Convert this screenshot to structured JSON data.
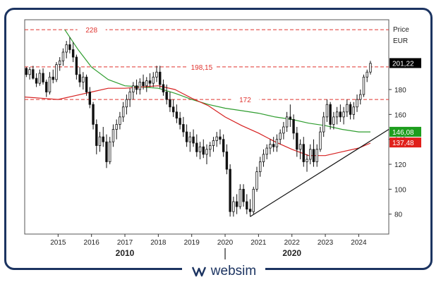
{
  "chart_data": {
    "type": "candlestick",
    "y_axis_title": "Price",
    "currency": "EUR",
    "ylim": [
      64,
      236
    ],
    "y_ticks": [
      80,
      100,
      120,
      140,
      160,
      180
    ],
    "x_range": [
      2014.0,
      2024.9
    ],
    "x_ticks": [
      {
        "value": 2015,
        "label": "2015"
      },
      {
        "value": 2016,
        "label": "2016"
      },
      {
        "value": 2017,
        "label": "2017"
      },
      {
        "value": 2018,
        "label": "2018"
      },
      {
        "value": 2019,
        "label": "2019"
      },
      {
        "value": 2020,
        "label": "2020"
      },
      {
        "value": 2021,
        "label": "2021"
      },
      {
        "value": 2022,
        "label": "2022"
      },
      {
        "value": 2023,
        "label": "2023"
      },
      {
        "value": 2024,
        "label": "2024"
      }
    ],
    "decade_labels": [
      {
        "value": 2017,
        "label": "2010"
      },
      {
        "value": 2022,
        "label": "2020"
      }
    ],
    "decade_divider": 2020,
    "levels": [
      {
        "value": 228,
        "label": "228"
      },
      {
        "value": 198.15,
        "label": "198,15"
      },
      {
        "value": 172,
        "label": "172"
      }
    ],
    "last_price": {
      "value": 201.22,
      "label": "201,22"
    },
    "sma_green": {
      "value": 146.08,
      "label": "146,08",
      "color": "#1e9e1e"
    },
    "sma_red": {
      "value": 137.48,
      "label": "137,48",
      "color": "#e0201b"
    },
    "colors": {
      "level": "#e0342f",
      "green_line": "#2f9d2f",
      "red_line": "#d62020",
      "candle": "#111111",
      "frame": "#1c3461"
    },
    "candles": [
      [
        2014.05,
        197,
        198,
        190,
        192
      ],
      [
        2014.15,
        192,
        198,
        188,
        196
      ],
      [
        2014.25,
        196,
        199,
        188,
        189
      ],
      [
        2014.35,
        189,
        193,
        182,
        185
      ],
      [
        2014.45,
        185,
        196,
        183,
        193
      ],
      [
        2014.55,
        193,
        197,
        184,
        186
      ],
      [
        2014.65,
        186,
        188,
        174,
        178
      ],
      [
        2014.75,
        178,
        194,
        176,
        190
      ],
      [
        2014.85,
        190,
        196,
        185,
        188
      ],
      [
        2014.95,
        188,
        202,
        186,
        200
      ],
      [
        2015.05,
        200,
        206,
        195,
        203
      ],
      [
        2015.15,
        203,
        213,
        199,
        210
      ],
      [
        2015.25,
        210,
        219,
        205,
        216
      ],
      [
        2015.35,
        216,
        222,
        209,
        212
      ],
      [
        2015.45,
        212,
        218,
        202,
        206
      ],
      [
        2015.55,
        206,
        208,
        188,
        192
      ],
      [
        2015.65,
        192,
        198,
        182,
        186
      ],
      [
        2015.75,
        186,
        194,
        180,
        190
      ],
      [
        2015.85,
        190,
        192,
        175,
        178
      ],
      [
        2015.95,
        178,
        182,
        165,
        168
      ],
      [
        2016.05,
        168,
        170,
        148,
        152
      ],
      [
        2016.15,
        152,
        156,
        128,
        135
      ],
      [
        2016.25,
        135,
        146,
        130,
        142
      ],
      [
        2016.35,
        142,
        150,
        134,
        138
      ],
      [
        2016.45,
        138,
        144,
        117,
        122
      ],
      [
        2016.55,
        122,
        142,
        120,
        138
      ],
      [
        2016.65,
        138,
        152,
        134,
        148
      ],
      [
        2016.75,
        148,
        156,
        140,
        152
      ],
      [
        2016.85,
        152,
        162,
        148,
        158
      ],
      [
        2016.95,
        158,
        170,
        154,
        166
      ],
      [
        2017.05,
        166,
        176,
        160,
        172
      ],
      [
        2017.15,
        172,
        181,
        166,
        178
      ],
      [
        2017.25,
        178,
        186,
        172,
        183
      ],
      [
        2017.35,
        183,
        188,
        176,
        180
      ],
      [
        2017.45,
        180,
        189,
        176,
        186
      ],
      [
        2017.55,
        186,
        192,
        180,
        183
      ],
      [
        2017.65,
        183,
        190,
        178,
        187
      ],
      [
        2017.75,
        187,
        193,
        182,
        185
      ],
      [
        2017.85,
        185,
        194,
        182,
        190
      ],
      [
        2017.95,
        190,
        199,
        186,
        194
      ],
      [
        2018.05,
        194,
        199,
        181,
        184
      ],
      [
        2018.15,
        184,
        188,
        175,
        178
      ],
      [
        2018.25,
        178,
        184,
        168,
        172
      ],
      [
        2018.35,
        172,
        178,
        162,
        166
      ],
      [
        2018.45,
        166,
        172,
        158,
        162
      ],
      [
        2018.55,
        162,
        168,
        153,
        157
      ],
      [
        2018.65,
        157,
        162,
        148,
        152
      ],
      [
        2018.75,
        152,
        158,
        142,
        146
      ],
      [
        2018.85,
        146,
        152,
        134,
        138
      ],
      [
        2018.95,
        138,
        146,
        130,
        142
      ],
      [
        2019.05,
        142,
        148,
        134,
        137
      ],
      [
        2019.15,
        137,
        144,
        126,
        130
      ],
      [
        2019.25,
        130,
        138,
        124,
        134
      ],
      [
        2019.35,
        134,
        140,
        125,
        128
      ],
      [
        2019.45,
        128,
        136,
        120,
        132
      ],
      [
        2019.55,
        132,
        138,
        126,
        135
      ],
      [
        2019.65,
        135,
        142,
        130,
        139
      ],
      [
        2019.75,
        139,
        146,
        134,
        142
      ],
      [
        2019.85,
        142,
        148,
        136,
        140
      ],
      [
        2019.95,
        140,
        144,
        126,
        130
      ],
      [
        2020.05,
        130,
        136,
        112,
        116
      ],
      [
        2020.15,
        116,
        120,
        78,
        82
      ],
      [
        2020.25,
        82,
        94,
        78,
        90
      ],
      [
        2020.35,
        90,
        96,
        80,
        86
      ],
      [
        2020.45,
        86,
        104,
        84,
        100
      ],
      [
        2020.55,
        100,
        104,
        86,
        90
      ],
      [
        2020.65,
        90,
        96,
        80,
        84
      ],
      [
        2020.75,
        84,
        92,
        78,
        82
      ],
      [
        2020.85,
        82,
        102,
        80,
        100
      ],
      [
        2020.95,
        100,
        118,
        98,
        114
      ],
      [
        2021.05,
        114,
        126,
        110,
        122
      ],
      [
        2021.15,
        122,
        132,
        118,
        128
      ],
      [
        2021.25,
        128,
        136,
        124,
        133
      ],
      [
        2021.35,
        133,
        140,
        128,
        136
      ],
      [
        2021.45,
        136,
        142,
        130,
        134
      ],
      [
        2021.55,
        134,
        144,
        130,
        140
      ],
      [
        2021.65,
        140,
        148,
        136,
        145
      ],
      [
        2021.75,
        145,
        154,
        140,
        150
      ],
      [
        2021.85,
        150,
        162,
        146,
        158
      ],
      [
        2021.95,
        158,
        168,
        150,
        156
      ],
      [
        2022.05,
        156,
        160,
        140,
        145
      ],
      [
        2022.15,
        145,
        150,
        126,
        132
      ],
      [
        2022.25,
        132,
        140,
        124,
        136
      ],
      [
        2022.35,
        136,
        142,
        118,
        122
      ],
      [
        2022.45,
        122,
        128,
        114,
        124
      ],
      [
        2022.55,
        124,
        136,
        120,
        132
      ],
      [
        2022.65,
        132,
        140,
        118,
        122
      ],
      [
        2022.75,
        122,
        136,
        118,
        132
      ],
      [
        2022.85,
        132,
        150,
        130,
        146
      ],
      [
        2022.95,
        146,
        162,
        142,
        158
      ],
      [
        2023.05,
        158,
        172,
        154,
        168
      ],
      [
        2023.15,
        168,
        170,
        148,
        152
      ],
      [
        2023.25,
        152,
        162,
        148,
        158
      ],
      [
        2023.35,
        158,
        166,
        152,
        162
      ],
      [
        2023.45,
        162,
        168,
        154,
        158
      ],
      [
        2023.55,
        158,
        166,
        152,
        162
      ],
      [
        2023.65,
        162,
        172,
        158,
        168
      ],
      [
        2023.75,
        168,
        170,
        156,
        160
      ],
      [
        2023.85,
        160,
        170,
        156,
        166
      ],
      [
        2023.95,
        166,
        176,
        162,
        172
      ],
      [
        2024.05,
        172,
        180,
        168,
        176
      ],
      [
        2024.15,
        176,
        192,
        174,
        190
      ],
      [
        2024.25,
        190,
        196,
        186,
        194
      ],
      [
        2024.35,
        194,
        203,
        192,
        201
      ]
    ],
    "green_line": [
      [
        2015.2,
        228
      ],
      [
        2015.6,
        212
      ],
      [
        2016.0,
        198
      ],
      [
        2016.5,
        188
      ],
      [
        2017.0,
        183
      ],
      [
        2017.5,
        182
      ],
      [
        2018.0,
        181
      ],
      [
        2018.5,
        177
      ],
      [
        2019.0,
        172
      ],
      [
        2019.5,
        168
      ],
      [
        2020.0,
        165
      ],
      [
        2020.5,
        163
      ],
      [
        2021.0,
        161
      ],
      [
        2021.5,
        158
      ],
      [
        2022.0,
        156
      ],
      [
        2022.5,
        153
      ],
      [
        2023.0,
        151
      ],
      [
        2023.5,
        148
      ],
      [
        2024.0,
        146
      ],
      [
        2024.35,
        146
      ]
    ],
    "red_line": [
      [
        2014.0,
        174
      ],
      [
        2014.5,
        173
      ],
      [
        2015.0,
        172
      ],
      [
        2015.5,
        175
      ],
      [
        2016.0,
        178
      ],
      [
        2016.5,
        181
      ],
      [
        2017.0,
        181
      ],
      [
        2017.5,
        182
      ],
      [
        2018.0,
        183
      ],
      [
        2018.5,
        180
      ],
      [
        2019.0,
        173
      ],
      [
        2019.5,
        167
      ],
      [
        2020.0,
        158
      ],
      [
        2020.5,
        151
      ],
      [
        2021.0,
        145
      ],
      [
        2021.5,
        138
      ],
      [
        2022.0,
        132
      ],
      [
        2022.5,
        127
      ],
      [
        2023.0,
        127
      ],
      [
        2023.5,
        130
      ],
      [
        2024.0,
        133
      ],
      [
        2024.35,
        137
      ]
    ],
    "trendline": [
      [
        2020.75,
        78
      ],
      [
        2024.9,
        148
      ]
    ]
  },
  "brand": {
    "name": "websim"
  }
}
